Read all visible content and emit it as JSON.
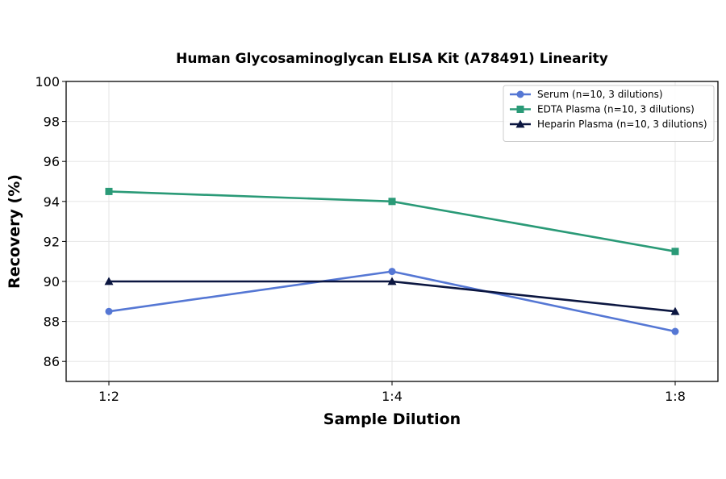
{
  "chart_data": {
    "type": "line",
    "title": "Human Glycosaminoglycan ELISA Kit (A78491) Linearity",
    "xlabel": "Sample Dilution",
    "ylabel": "Recovery (%)",
    "categories": [
      "1:2",
      "1:4",
      "1:8"
    ],
    "ylim": [
      85,
      100
    ],
    "yticks": [
      86,
      88,
      90,
      92,
      94,
      96,
      98,
      100
    ],
    "grid": true,
    "legend_position": "top-right",
    "series": [
      {
        "name": "Serum (n=10, 3 dilutions)",
        "values": [
          88.5,
          90.5,
          87.5
        ],
        "color": "#5577d4",
        "marker": "circle"
      },
      {
        "name": "EDTA Plasma (n=10, 3 dilutions)",
        "values": [
          94.5,
          94.0,
          91.5
        ],
        "color": "#2a9a77",
        "marker": "square"
      },
      {
        "name": "Heparin Plasma (n=10, 3 dilutions)",
        "values": [
          90.0,
          90.0,
          88.5
        ],
        "color": "#0b1640",
        "marker": "triangle"
      }
    ]
  }
}
